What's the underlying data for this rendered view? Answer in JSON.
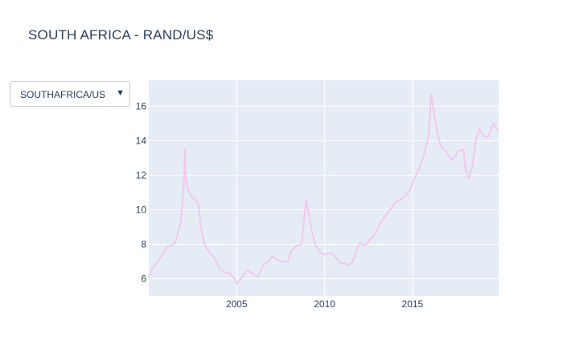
{
  "title": "SOUTH AFRICA - RAND/US$",
  "dropdown": {
    "selected": "SOUTHAFRICA/US",
    "arrow_icon": "triangle-down-icon"
  },
  "chart_data": {
    "type": "line",
    "title": "SOUTH AFRICA - RAND/US$",
    "xlabel": "",
    "ylabel": "",
    "xlim": [
      2000.0,
      2019.9
    ],
    "ylim": [
      5.0,
      17.5
    ],
    "x_ticks": [
      2005,
      2010,
      2015
    ],
    "y_ticks": [
      6,
      8,
      10,
      12,
      14,
      16
    ],
    "grid": true,
    "legend": "none",
    "line_color": "#f1c8ee",
    "plot_bg": "#e5ecf6",
    "series": [
      {
        "x": [
          2000.0,
          2000.2,
          2000.5,
          2000.8,
          2001.0,
          2001.2,
          2001.5,
          2001.8,
          2001.9,
          2002.0,
          2002.05,
          2002.1,
          2002.2,
          2002.4,
          2002.6,
          2002.8,
          2003.0,
          2003.2,
          2003.5,
          2003.8,
          2004.0,
          2004.3,
          2004.6,
          2004.9,
          2005.0,
          2005.3,
          2005.6,
          2005.9,
          2006.2,
          2006.5,
          2006.8,
          2007.0,
          2007.3,
          2007.6,
          2007.9,
          2008.1,
          2008.4,
          2008.7,
          2008.85,
          2008.95,
          2009.1,
          2009.3,
          2009.5,
          2009.8,
          2010.0,
          2010.3,
          2010.6,
          2010.9,
          2011.1,
          2011.4,
          2011.6,
          2011.8,
          2012.0,
          2012.3,
          2012.6,
          2012.9,
          2013.2,
          2013.5,
          2013.8,
          2014.0,
          2014.3,
          2014.6,
          2014.9,
          2015.0,
          2015.3,
          2015.6,
          2015.9,
          2016.0,
          2016.05,
          2016.2,
          2016.4,
          2016.6,
          2016.9,
          2017.0,
          2017.3,
          2017.6,
          2017.9,
          2018.0,
          2018.2,
          2018.4,
          2018.6,
          2018.8,
          2019.0,
          2019.3,
          2019.6,
          2019.9
        ],
        "y": [
          6.1,
          6.6,
          7.0,
          7.4,
          7.8,
          7.9,
          8.1,
          9.2,
          10.2,
          11.5,
          13.5,
          12.0,
          11.2,
          10.8,
          10.6,
          10.4,
          8.8,
          7.9,
          7.5,
          7.1,
          6.6,
          6.4,
          6.3,
          6.0,
          5.7,
          6.1,
          6.5,
          6.3,
          6.1,
          6.8,
          7.0,
          7.3,
          7.1,
          7.0,
          7.0,
          7.6,
          7.9,
          8.0,
          9.6,
          10.6,
          9.8,
          8.6,
          7.9,
          7.5,
          7.4,
          7.5,
          7.3,
          6.9,
          6.9,
          6.8,
          7.0,
          7.6,
          8.1,
          7.9,
          8.3,
          8.6,
          9.3,
          9.7,
          10.1,
          10.4,
          10.6,
          10.8,
          11.2,
          11.6,
          12.2,
          13.0,
          14.2,
          15.5,
          16.7,
          15.8,
          14.5,
          13.7,
          13.4,
          13.2,
          12.9,
          13.4,
          13.5,
          12.4,
          11.8,
          12.5,
          14.0,
          14.7,
          14.3,
          14.2,
          15.0,
          14.5
        ]
      }
    ]
  }
}
